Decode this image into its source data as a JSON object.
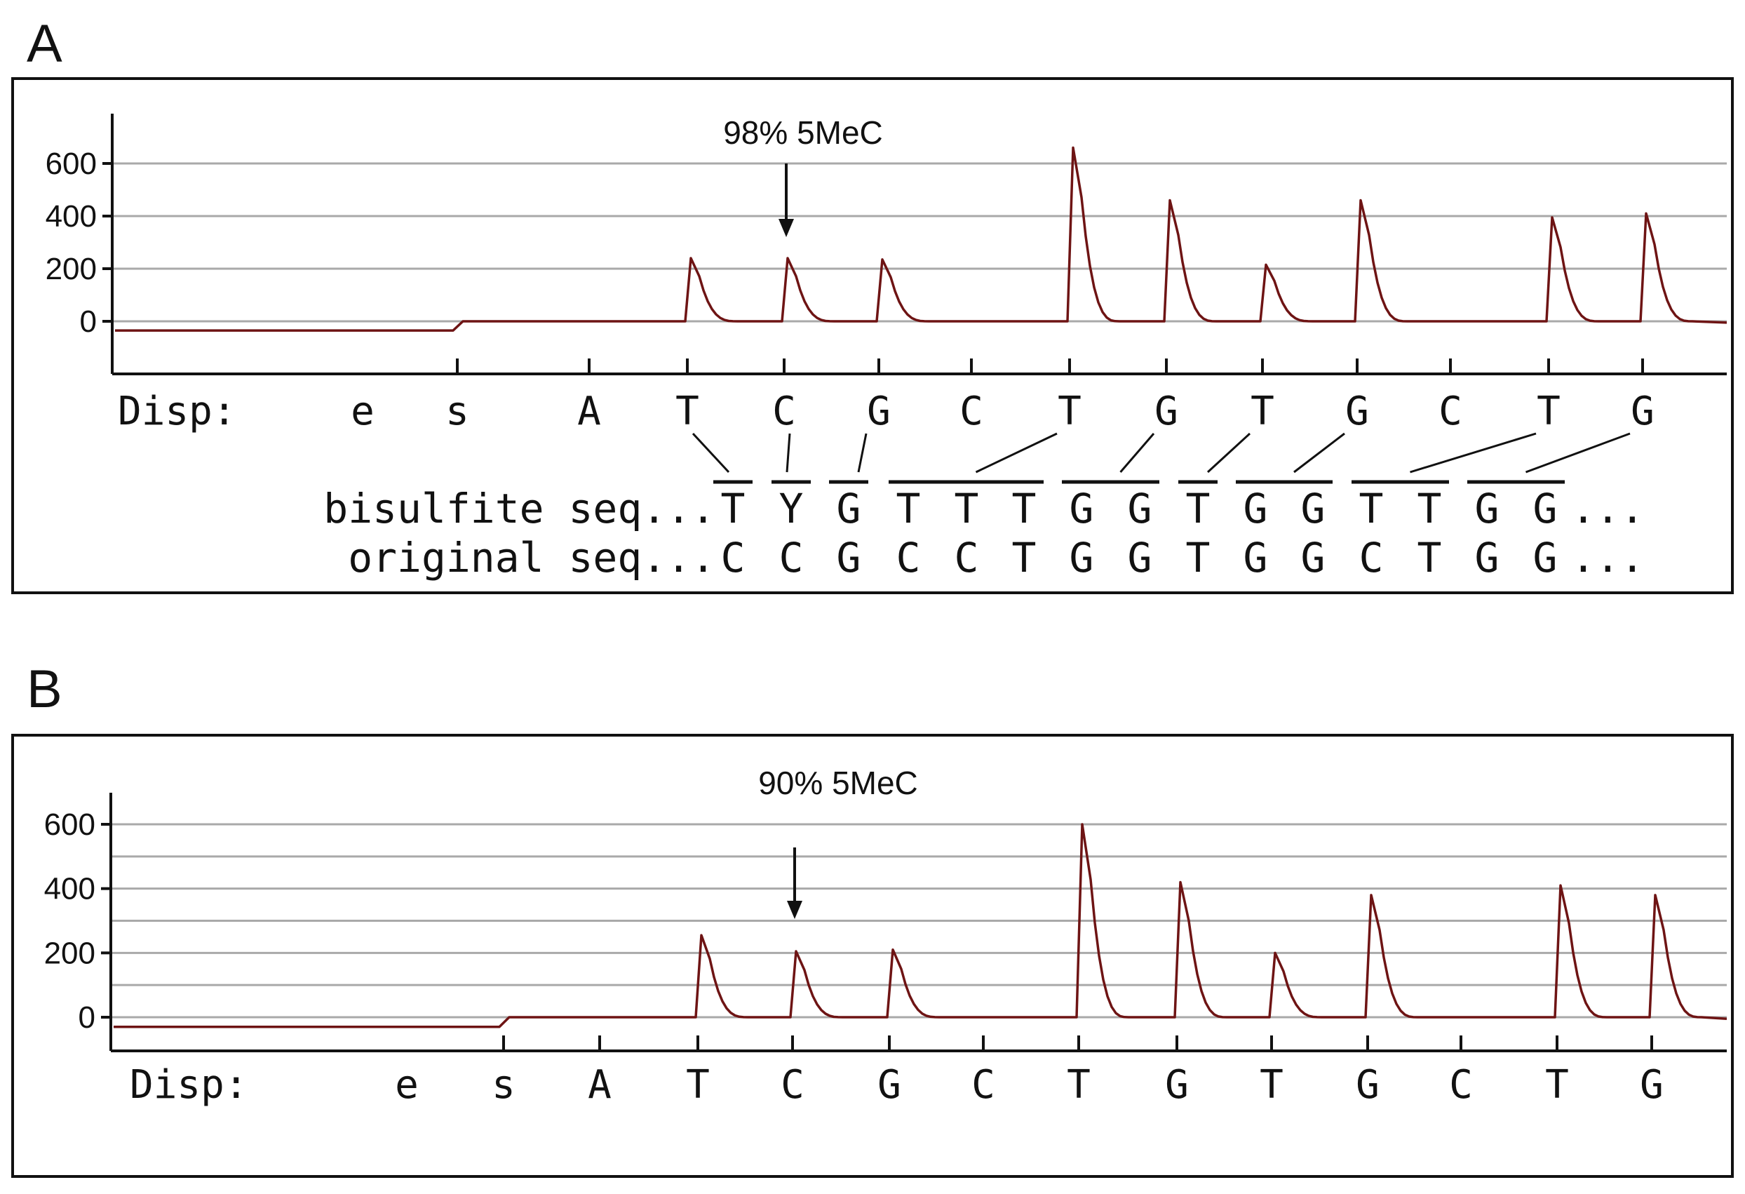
{
  "chart_data": [
    {
      "type": "line",
      "panel_label": "A",
      "annotation": "98% 5MeC",
      "annotation_index": 4,
      "y_ticks": [
        "600",
        "400",
        "200",
        "0"
      ],
      "y_tick_values": [
        600,
        400,
        200,
        0
      ],
      "ylim": [
        -200,
        800
      ],
      "grid_lines": [
        600,
        400,
        200,
        0
      ],
      "grid": true,
      "disp_label": "Disp:",
      "dispensations": [
        "e",
        "s",
        "A",
        "T",
        "C",
        "G",
        "C",
        "T",
        "G",
        "T",
        "G",
        "C",
        "T",
        "G"
      ],
      "peak_heights": [
        0,
        0,
        0,
        240,
        240,
        235,
        0,
        660,
        460,
        215,
        460,
        0,
        395,
        410
      ],
      "baseline_pre": -35,
      "bisulfite_label": "bisulfite seq...",
      "bisulfite_seq": [
        "T",
        "Y",
        "G",
        "T",
        "T",
        "T",
        "G",
        "G",
        "T",
        "G",
        "G",
        "T",
        "T",
        "G",
        "G"
      ],
      "bisulfite_suffix": "...",
      "original_label": "original seq...",
      "original_seq": [
        "C",
        "C",
        "G",
        "C",
        "C",
        "T",
        "G",
        "G",
        "T",
        "G",
        "G",
        "C",
        "T",
        "G",
        "G"
      ],
      "original_suffix": "...",
      "groups": [
        {
          "disp": 3,
          "start": 0,
          "end": 0
        },
        {
          "disp": 4,
          "start": 1,
          "end": 1
        },
        {
          "disp": 5,
          "start": 2,
          "end": 2
        },
        {
          "disp": 7,
          "start": 3,
          "end": 5
        },
        {
          "disp": 8,
          "start": 6,
          "end": 7
        },
        {
          "disp": 9,
          "start": 8,
          "end": 8
        },
        {
          "disp": 10,
          "start": 9,
          "end": 10
        },
        {
          "disp": 12,
          "start": 11,
          "end": 12
        },
        {
          "disp": 13,
          "start": 13,
          "end": 14
        }
      ]
    },
    {
      "type": "line",
      "panel_label": "B",
      "annotation": "90% 5MeC",
      "annotation_index": 4,
      "y_ticks": [
        "600",
        "400",
        "200",
        "0"
      ],
      "y_tick_values": [
        600,
        400,
        200,
        0
      ],
      "ylim": [
        -100,
        700
      ],
      "grid_lines": [
        600,
        500,
        400,
        300,
        200,
        100,
        0
      ],
      "grid": true,
      "disp_label": "Disp:",
      "dispensations": [
        "e",
        "s",
        "A",
        "T",
        "C",
        "G",
        "C",
        "T",
        "G",
        "T",
        "G",
        "C",
        "T",
        "G"
      ],
      "peak_heights": [
        0,
        0,
        0,
        255,
        205,
        210,
        0,
        600,
        420,
        200,
        380,
        0,
        410,
        380
      ],
      "baseline_pre": -30
    }
  ]
}
